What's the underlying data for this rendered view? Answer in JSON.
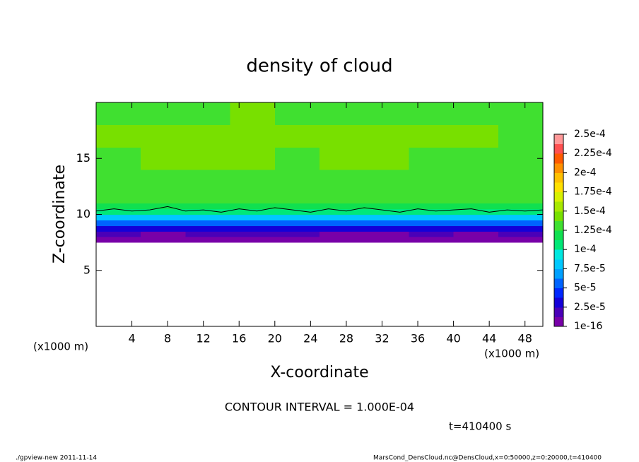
{
  "chart_data": {
    "type": "contour",
    "title": "density of cloud",
    "xlabel": "X-coordinate",
    "ylabel": "Z-coordinate",
    "x_unit": "(x1000 m)",
    "y_unit": "(x1000 m)",
    "xlim": [
      0,
      50
    ],
    "ylim": [
      0,
      20
    ],
    "xticks": [
      4,
      8,
      12,
      16,
      20,
      24,
      28,
      32,
      36,
      40,
      44,
      48
    ],
    "yticks": [
      5,
      10,
      15
    ],
    "x_edges": [
      0,
      5,
      10,
      15,
      20,
      25,
      30,
      35,
      40,
      45,
      50
    ],
    "z_edges": [
      7.5,
      8,
      8.5,
      9,
      9.5,
      10,
      10.5,
      11,
      12,
      14,
      16,
      18,
      20
    ],
    "values": [
      [
        5e-06,
        5e-06,
        5e-06,
        5e-06,
        5e-06,
        5e-06,
        5e-06,
        5e-06,
        5e-06,
        5e-06
      ],
      [
        1.5e-05,
        5e-06,
        1.5e-05,
        1.5e-05,
        1.5e-05,
        5e-06,
        5e-06,
        1.5e-05,
        5e-06,
        1.5e-05
      ],
      [
        3.5e-05,
        3.5e-05,
        3.5e-05,
        3.5e-05,
        3.5e-05,
        3.5e-05,
        3.5e-05,
        3.5e-05,
        3.5e-05,
        3.5e-05
      ],
      [
        6e-05,
        6e-05,
        6e-05,
        6e-05,
        6e-05,
        6e-05,
        6e-05,
        6e-05,
        6e-05,
        6e-05
      ],
      [
        8.5e-05,
        8.5e-05,
        8.5e-05,
        8.5e-05,
        8.5e-05,
        8.5e-05,
        8.5e-05,
        8.5e-05,
        8.5e-05,
        8.5e-05
      ],
      [
        0.000105,
        0.000105,
        0.000105,
        0.000105,
        0.000105,
        0.000105,
        0.000105,
        0.000105,
        0.000105,
        0.000105
      ],
      [
        0.00012,
        0.00012,
        0.00012,
        0.00012,
        0.00012,
        0.00012,
        0.00012,
        0.00012,
        0.00012,
        0.00012
      ],
      [
        0.00013,
        0.00013,
        0.00013,
        0.00013,
        0.00013,
        0.00013,
        0.00013,
        0.00013,
        0.00013,
        0.00013
      ],
      [
        0.000135,
        0.000135,
        0.000135,
        0.000135,
        0.000135,
        0.000135,
        0.000135,
        0.000135,
        0.000135,
        0.000135
      ],
      [
        0.000135,
        0.000145,
        0.000145,
        0.000145,
        0.000135,
        0.000145,
        0.000145,
        0.000135,
        0.000135,
        0.000135
      ],
      [
        0.00014,
        0.00014,
        0.000145,
        0.000145,
        0.00014,
        0.00014,
        0.00014,
        0.00014,
        0.00014,
        0.000135
      ],
      [
        0.000135,
        0.000135,
        0.000135,
        0.00014,
        0.000135,
        0.000135,
        0.000135,
        0.000135,
        0.000135,
        0.000135
      ]
    ],
    "contour_line": {
      "color": "#000000",
      "x": [
        0,
        2,
        4,
        6,
        8,
        10,
        12,
        14,
        16,
        18,
        20,
        22,
        24,
        26,
        28,
        30,
        32,
        34,
        36,
        38,
        40,
        42,
        44,
        46,
        48,
        50
      ],
      "values": [
        10.3,
        10.5,
        10.3,
        10.4,
        10.7,
        10.3,
        10.4,
        10.2,
        10.5,
        10.3,
        10.6,
        10.4,
        10.2,
        10.5,
        10.3,
        10.6,
        10.4,
        10.2,
        10.5,
        10.3,
        10.4,
        10.5,
        10.2,
        10.4,
        10.3,
        10.4
      ]
    },
    "colorbar": {
      "ticks": [
        {
          "value": 1e-16,
          "label": "1e-16"
        },
        {
          "value": 2.5e-05,
          "label": "2.5e-5"
        },
        {
          "value": 5e-05,
          "label": "5e-5"
        },
        {
          "value": 7.5e-05,
          "label": "7.5e-5"
        },
        {
          "value": 0.0001,
          "label": "1e-4"
        },
        {
          "value": 0.000125,
          "label": "1.25e-4"
        },
        {
          "value": 0.00015,
          "label": "1.5e-4"
        },
        {
          "value": 0.000175,
          "label": "1.75e-4"
        },
        {
          "value": 0.0002,
          "label": "2e-4"
        },
        {
          "value": 0.000225,
          "label": "2.25e-4"
        },
        {
          "value": 0.00025,
          "label": "2.5e-4"
        }
      ],
      "colors": [
        "#7800a8",
        "#4a00b8",
        "#1400d8",
        "#0028ff",
        "#0064ff",
        "#00a0ff",
        "#00c8ff",
        "#00e8e0",
        "#00e878",
        "#10e050",
        "#40e030",
        "#78e000",
        "#a8e800",
        "#d8f000",
        "#ffe000",
        "#ffc000",
        "#ff9000",
        "#ff5a00",
        "#ff5050",
        "#ff9898"
      ]
    },
    "contour_interval": "CONTOUR INTERVAL = 1.000E-04",
    "time_label": "t=410400 s",
    "footer_left": "./gpview-new  2011-11-14",
    "footer_right": "MarsCond_DensCloud.nc@DensCloud,x=0:50000,z=0:20000,t=410400"
  }
}
